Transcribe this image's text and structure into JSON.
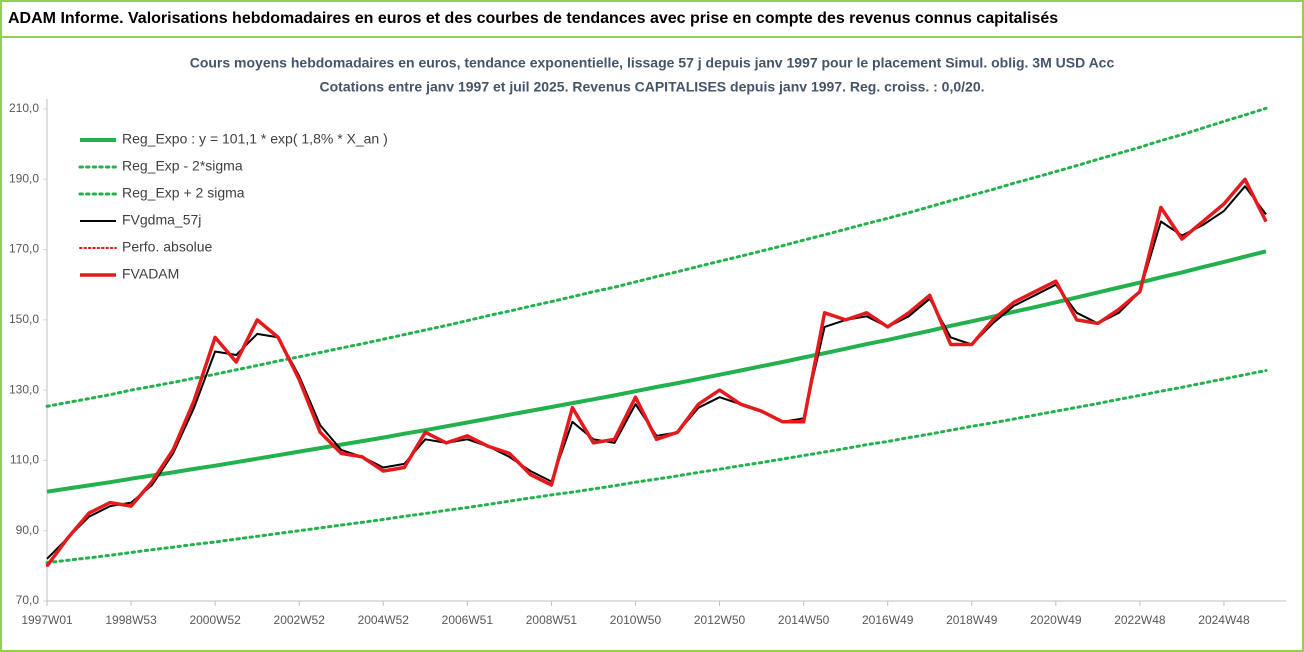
{
  "chart_data": {
    "type": "line",
    "title": "ADAM Informe. Valorisations hebdomadaires en euros et des courbes de tendances avec prise en compte des revenus connus capitalisés",
    "subtitle": [
      "Cours moyens hebdomadaires en euros, tendance exponentielle, lissage 57 j depuis janv 1997  pour le placement Simul. oblig. 3M USD Acc",
      "Cotations entre janv 1997 et juil 2025. Revenus CAPITALISES depuis janv 1997.  Reg. croiss. : 0,0/20."
    ],
    "categories": [
      "1997W01",
      null,
      null,
      null,
      "1998W53",
      null,
      null,
      null,
      "2000W52",
      null,
      null,
      null,
      "2002W52",
      null,
      null,
      null,
      "2004W52",
      null,
      null,
      null,
      "2006W51",
      null,
      null,
      null,
      "2008W51",
      null,
      null,
      null,
      "2010W50",
      null,
      null,
      null,
      "2012W50",
      null,
      null,
      null,
      "2014W50",
      null,
      null,
      null,
      "2016W49",
      null,
      null,
      null,
      "2018W49",
      null,
      null,
      null,
      "2020W49",
      null,
      null,
      null,
      "2022W48",
      null,
      null,
      null,
      "2024W48",
      null,
      null
    ],
    "ylim": [
      70,
      210
    ],
    "yticks": [
      {
        "value": 70,
        "label": "70,0"
      },
      {
        "value": 90,
        "label": "90,0"
      },
      {
        "value": 110,
        "label": "110,0"
      },
      {
        "value": 130,
        "label": "130,0"
      },
      {
        "value": 150,
        "label": "150,0"
      },
      {
        "value": 170,
        "label": "170,0"
      },
      {
        "value": 190,
        "label": "190,0"
      },
      {
        "value": 210,
        "label": "210,0"
      }
    ],
    "grid": false,
    "legend": "upper left",
    "series": [
      {
        "name": "Reg_Expo : y = 101,1 * exp( 1,8% *  X_an )",
        "color": "#22b14c",
        "style": "solid",
        "width": 4,
        "values": [
          101.1,
          102.0,
          102.9,
          103.8,
          104.8,
          105.7,
          106.6,
          107.6,
          108.5,
          109.5,
          110.5,
          111.5,
          112.5,
          113.5,
          114.5,
          115.5,
          116.5,
          117.6,
          118.6,
          119.7,
          120.8,
          121.9,
          123.0,
          124.1,
          125.2,
          126.3,
          127.4,
          128.5,
          129.7,
          130.9,
          132.0,
          133.2,
          134.4,
          135.6,
          136.8,
          138.0,
          139.3,
          140.5,
          141.8,
          143.1,
          144.3,
          145.6,
          146.9,
          148.3,
          149.6,
          150.9,
          152.3,
          153.6,
          155.0,
          156.4,
          157.8,
          159.2,
          160.6,
          162.1,
          163.5,
          165.0,
          166.5,
          168.0,
          169.5
        ]
      },
      {
        "name": "Reg_Exp - 2*sigma",
        "color": "#22b14c",
        "style": "dotted",
        "width": 3,
        "values": [
          80.9,
          81.6,
          82.3,
          83.0,
          83.8,
          84.6,
          85.3,
          86.1,
          86.8,
          87.6,
          88.4,
          89.2,
          90.0,
          90.8,
          91.6,
          92.4,
          93.2,
          94.1,
          94.9,
          95.8,
          96.6,
          97.5,
          98.4,
          99.3,
          100.2,
          101.0,
          101.9,
          102.8,
          103.8,
          104.7,
          105.6,
          106.6,
          107.5,
          108.5,
          109.4,
          110.4,
          111.4,
          112.4,
          113.4,
          114.5,
          115.4,
          116.5,
          117.5,
          118.6,
          119.7,
          120.7,
          121.8,
          122.9,
          124.0,
          125.1,
          126.2,
          127.4,
          128.5,
          129.7,
          130.8,
          132.0,
          133.2,
          134.4,
          135.6
        ]
      },
      {
        "name": "Reg_Exp + 2 sigma",
        "color": "#22b14c",
        "style": "dotted",
        "width": 3,
        "values": [
          125.4,
          126.5,
          127.6,
          128.7,
          130.0,
          131.1,
          132.2,
          133.4,
          134.5,
          135.8,
          137.0,
          138.3,
          139.5,
          140.7,
          142.0,
          143.2,
          144.5,
          145.8,
          147.1,
          148.4,
          149.8,
          151.2,
          152.5,
          153.9,
          155.2,
          156.6,
          158.0,
          159.3,
          160.8,
          162.3,
          163.7,
          165.2,
          166.7,
          168.1,
          169.6,
          171.1,
          172.7,
          174.2,
          175.8,
          177.4,
          178.9,
          180.5,
          182.2,
          183.9,
          185.5,
          187.1,
          188.9,
          190.5,
          192.2,
          193.9,
          195.7,
          197.4,
          199.1,
          201.0,
          202.7,
          204.6,
          206.5,
          208.3,
          210.2
        ]
      },
      {
        "name": "FVgdma_57j",
        "color": "#000000",
        "style": "solid",
        "width": 2,
        "values": [
          82,
          88,
          94,
          97,
          98,
          103,
          112,
          125,
          141,
          140,
          146,
          145,
          134,
          120,
          113,
          111,
          108,
          109,
          116,
          115,
          116,
          114,
          111,
          107,
          104,
          121,
          116,
          115,
          126,
          117,
          118,
          125,
          128,
          126,
          124,
          121,
          122,
          148,
          150,
          151,
          148,
          151,
          156,
          145,
          143,
          149,
          154,
          157,
          160,
          152,
          149,
          152,
          158,
          178,
          174,
          177,
          181,
          188,
          180
        ]
      },
      {
        "name": "Perfo. absolue",
        "color": "#e41a1c",
        "style": "dotted",
        "width": 2,
        "values": [
          80,
          88,
          95,
          98,
          97,
          104,
          113,
          127,
          145,
          138,
          150,
          145,
          133,
          118,
          112,
          111,
          107,
          108,
          118,
          115,
          117,
          114,
          112,
          106,
          103,
          125,
          115,
          116,
          128,
          116,
          118,
          126,
          130,
          126,
          124,
          121,
          121,
          152,
          150,
          152,
          148,
          152,
          157,
          143,
          143,
          150,
          155,
          158,
          161,
          150,
          149,
          153,
          158,
          182,
          173,
          178,
          183,
          190,
          178
        ]
      },
      {
        "name": "FVADAM",
        "color": "#e41a1c",
        "style": "solid",
        "width": 3.5,
        "values": [
          80,
          88,
          95,
          98,
          97,
          104,
          113,
          127,
          145,
          138,
          150,
          145,
          133,
          118,
          112,
          111,
          107,
          108,
          118,
          115,
          117,
          114,
          112,
          106,
          103,
          125,
          115,
          116,
          128,
          116,
          118,
          126,
          130,
          126,
          124,
          121,
          121,
          152,
          150,
          152,
          148,
          152,
          157,
          143,
          143,
          150,
          155,
          158,
          161,
          150,
          149,
          153,
          158,
          182,
          173,
          178,
          183,
          190,
          178
        ]
      }
    ]
  }
}
